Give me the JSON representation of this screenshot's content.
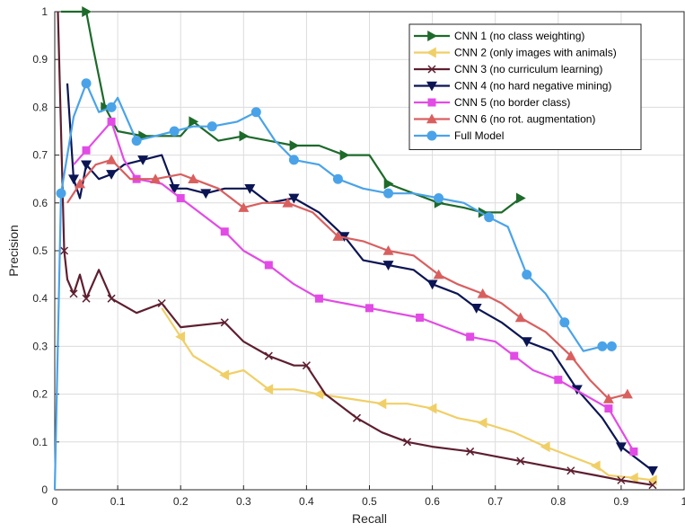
{
  "chart_data": {
    "type": "line",
    "xlabel": "Recall",
    "ylabel": "Precision",
    "xlim": [
      0,
      1
    ],
    "ylim": [
      0,
      1
    ],
    "xticks": [
      "0",
      "0.1",
      "0.2",
      "0.3",
      "0.4",
      "0.5",
      "0.6",
      "0.7",
      "0.8",
      "0.9",
      "1"
    ],
    "yticks": [
      "0",
      "0.1",
      "0.2",
      "0.3",
      "0.4",
      "0.5",
      "0.6",
      "0.7",
      "0.8",
      "0.9",
      "1"
    ],
    "grid": true,
    "legend_position": "top-right",
    "series": [
      {
        "name": "CNN 1 (no class weighting)",
        "color": "#1d6a2a",
        "marker": "triangle-right",
        "x": [
          0.01,
          0.05,
          0.06,
          0.08,
          0.1,
          0.14,
          0.2,
          0.22,
          0.26,
          0.3,
          0.34,
          0.38,
          0.42,
          0.46,
          0.5,
          0.53,
          0.57,
          0.61,
          0.65,
          0.68,
          0.71,
          0.74
        ],
        "y": [
          1.0,
          1.0,
          0.93,
          0.8,
          0.75,
          0.74,
          0.74,
          0.77,
          0.73,
          0.74,
          0.73,
          0.72,
          0.72,
          0.7,
          0.7,
          0.64,
          0.62,
          0.6,
          0.59,
          0.58,
          0.58,
          0.61
        ]
      },
      {
        "name": "CNN 2 (only images with animals)",
        "color": "#f0cf67",
        "marker": "triangle-left",
        "x": [
          0.17,
          0.2,
          0.22,
          0.27,
          0.3,
          0.34,
          0.38,
          0.42,
          0.47,
          0.52,
          0.56,
          0.6,
          0.64,
          0.68,
          0.73,
          0.78,
          0.82,
          0.86,
          0.88,
          0.92,
          0.95
        ],
        "y": [
          0.38,
          0.32,
          0.28,
          0.24,
          0.25,
          0.21,
          0.21,
          0.2,
          0.19,
          0.18,
          0.18,
          0.17,
          0.15,
          0.14,
          0.12,
          0.09,
          0.07,
          0.05,
          0.03,
          0.025,
          0.02
        ]
      },
      {
        "name": "CNN 3 (no curriculum learning)",
        "color": "#5e1f30",
        "marker": "x",
        "x": [
          0.005,
          0.015,
          0.02,
          0.03,
          0.04,
          0.05,
          0.07,
          0.09,
          0.13,
          0.17,
          0.2,
          0.27,
          0.3,
          0.34,
          0.38,
          0.4,
          0.43,
          0.48,
          0.52,
          0.56,
          0.6,
          0.66,
          0.7,
          0.74,
          0.78,
          0.82,
          0.86,
          0.9,
          0.95
        ],
        "y": [
          1.0,
          0.5,
          0.44,
          0.41,
          0.45,
          0.4,
          0.46,
          0.4,
          0.37,
          0.39,
          0.34,
          0.35,
          0.31,
          0.28,
          0.26,
          0.26,
          0.2,
          0.15,
          0.12,
          0.1,
          0.09,
          0.08,
          0.07,
          0.06,
          0.05,
          0.04,
          0.03,
          0.02,
          0.01
        ]
      },
      {
        "name": "CNN 4 (no hard negative mining)",
        "color": "#0b1554",
        "marker": "triangle-down",
        "x": [
          0.02,
          0.03,
          0.04,
          0.05,
          0.07,
          0.09,
          0.11,
          0.14,
          0.17,
          0.19,
          0.21,
          0.24,
          0.27,
          0.31,
          0.34,
          0.38,
          0.42,
          0.46,
          0.49,
          0.53,
          0.57,
          0.6,
          0.64,
          0.67,
          0.71,
          0.75,
          0.79,
          0.83,
          0.87,
          0.9,
          0.95
        ],
        "y": [
          0.85,
          0.65,
          0.61,
          0.68,
          0.65,
          0.66,
          0.68,
          0.69,
          0.7,
          0.63,
          0.63,
          0.62,
          0.63,
          0.63,
          0.6,
          0.61,
          0.58,
          0.53,
          0.48,
          0.47,
          0.46,
          0.43,
          0.41,
          0.38,
          0.35,
          0.31,
          0.29,
          0.21,
          0.15,
          0.09,
          0.04
        ]
      },
      {
        "name": "CNN 5 (no border class)",
        "color": "#e24be5",
        "marker": "square",
        "x": [
          0.03,
          0.05,
          0.07,
          0.09,
          0.11,
          0.13,
          0.17,
          0.2,
          0.23,
          0.27,
          0.3,
          0.34,
          0.38,
          0.42,
          0.46,
          0.5,
          0.54,
          0.58,
          0.62,
          0.66,
          0.7,
          0.73,
          0.76,
          0.8,
          0.84,
          0.88,
          0.92
        ],
        "y": [
          0.68,
          0.71,
          0.74,
          0.77,
          0.69,
          0.65,
          0.64,
          0.61,
          0.58,
          0.54,
          0.5,
          0.47,
          0.43,
          0.4,
          0.39,
          0.38,
          0.37,
          0.36,
          0.34,
          0.32,
          0.31,
          0.28,
          0.25,
          0.23,
          0.2,
          0.17,
          0.08
        ]
      },
      {
        "name": "CNN 6 (no rot. augmentation)",
        "color": "#d95f5f",
        "marker": "triangle-up",
        "x": [
          0.02,
          0.04,
          0.065,
          0.09,
          0.12,
          0.16,
          0.2,
          0.22,
          0.26,
          0.3,
          0.33,
          0.37,
          0.41,
          0.45,
          0.49,
          0.53,
          0.57,
          0.61,
          0.64,
          0.68,
          0.71,
          0.74,
          0.78,
          0.82,
          0.85,
          0.88,
          0.91
        ],
        "y": [
          0.6,
          0.64,
          0.68,
          0.69,
          0.65,
          0.65,
          0.66,
          0.65,
          0.63,
          0.59,
          0.6,
          0.6,
          0.58,
          0.53,
          0.52,
          0.5,
          0.49,
          0.45,
          0.43,
          0.41,
          0.39,
          0.36,
          0.33,
          0.28,
          0.23,
          0.19,
          0.2
        ]
      },
      {
        "name": "Full Model",
        "color": "#4aa3e8",
        "marker": "circle",
        "x": [
          0.0,
          0.01,
          0.03,
          0.05,
          0.07,
          0.09,
          0.1,
          0.13,
          0.16,
          0.19,
          0.22,
          0.25,
          0.29,
          0.32,
          0.35,
          0.38,
          0.42,
          0.45,
          0.49,
          0.53,
          0.57,
          0.61,
          0.65,
          0.69,
          0.72,
          0.75,
          0.78,
          0.81,
          0.84,
          0.87,
          0.885
        ],
        "y": [
          0.0,
          0.62,
          0.78,
          0.85,
          0.79,
          0.8,
          0.82,
          0.73,
          0.74,
          0.75,
          0.76,
          0.76,
          0.77,
          0.79,
          0.73,
          0.69,
          0.68,
          0.65,
          0.63,
          0.62,
          0.62,
          0.61,
          0.6,
          0.57,
          0.55,
          0.45,
          0.41,
          0.35,
          0.29,
          0.3,
          0.3
        ]
      }
    ]
  }
}
